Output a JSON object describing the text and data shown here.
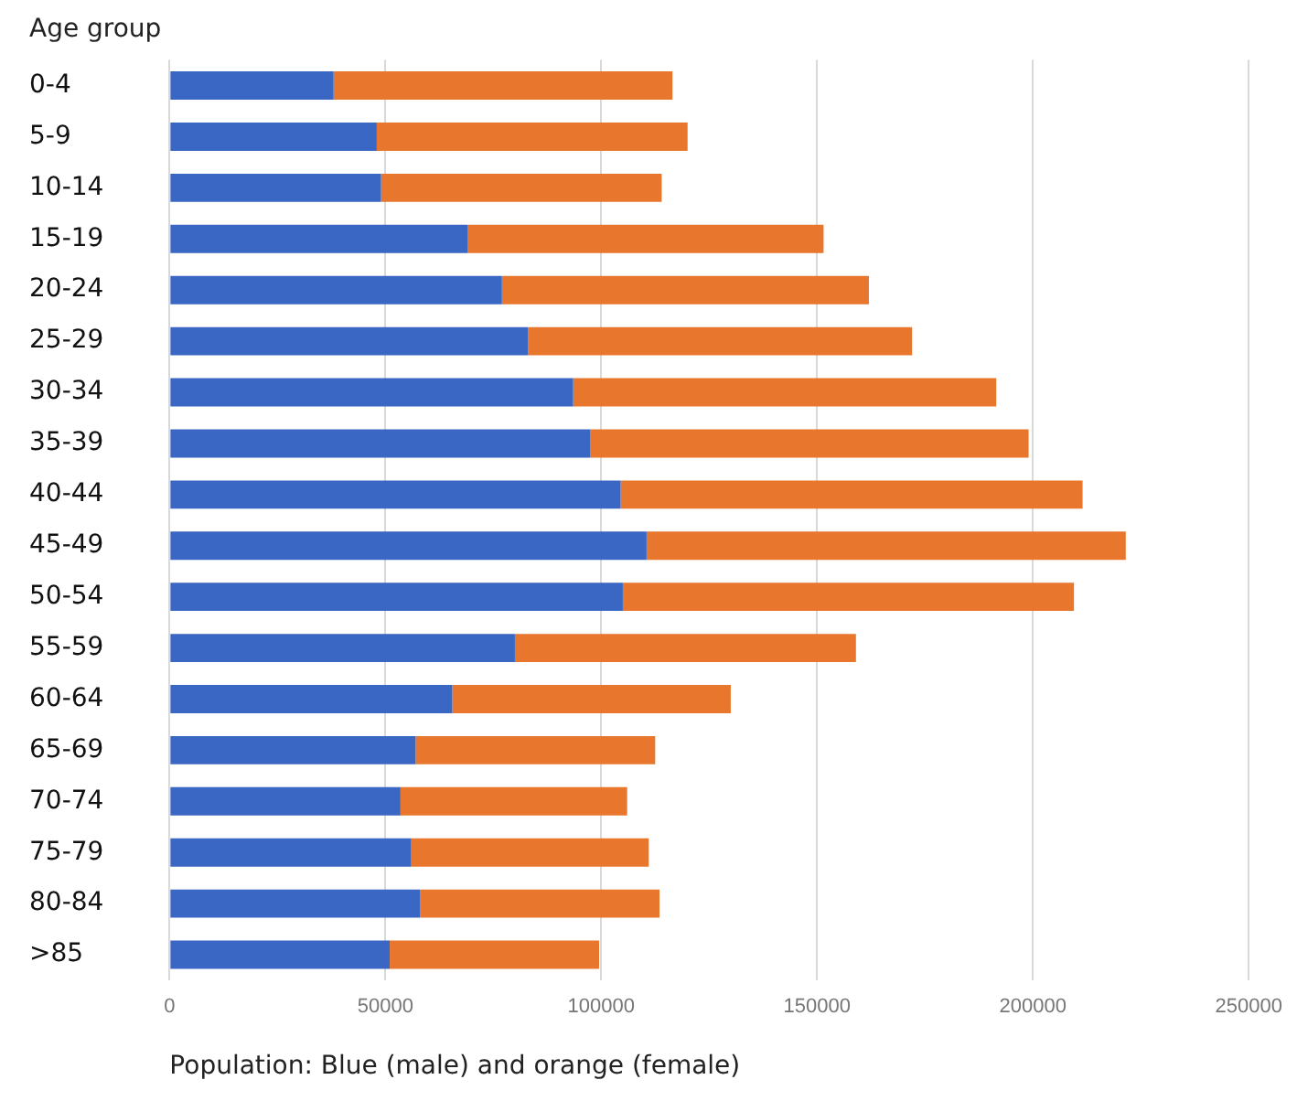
{
  "chart_data": {
    "type": "bar",
    "orientation": "horizontal",
    "stacked": true,
    "title": "Age group",
    "xlabel": "Population: Blue (male) and orange (female)",
    "categories": [
      "0-4",
      "5-9",
      "10-14",
      "15-19",
      "20-24",
      "25-29",
      "30-34",
      "35-39",
      "40-44",
      "45-49",
      "50-54",
      "55-59",
      "60-64",
      "65-69",
      "70-74",
      "75-79",
      "80-84",
      ">85"
    ],
    "series": [
      {
        "color": "#3a66c4",
        "values": [
          38000,
          48000,
          49000,
          69000,
          77000,
          83000,
          93500,
          97500,
          104500,
          110500,
          105000,
          80000,
          65500,
          57000,
          53500,
          56000,
          58000,
          51000
        ]
      },
      {
        "color": "#e8762c",
        "values": [
          78500,
          72000,
          65000,
          82500,
          85000,
          89000,
          98000,
          101500,
          107000,
          111000,
          104500,
          79000,
          64500,
          55500,
          52500,
          55000,
          55500,
          48500
        ]
      }
    ],
    "xlim": [
      0,
      250000
    ],
    "xticks": [
      0,
      50000,
      100000,
      150000,
      200000,
      250000
    ],
    "grid": "x",
    "legend": false
  }
}
